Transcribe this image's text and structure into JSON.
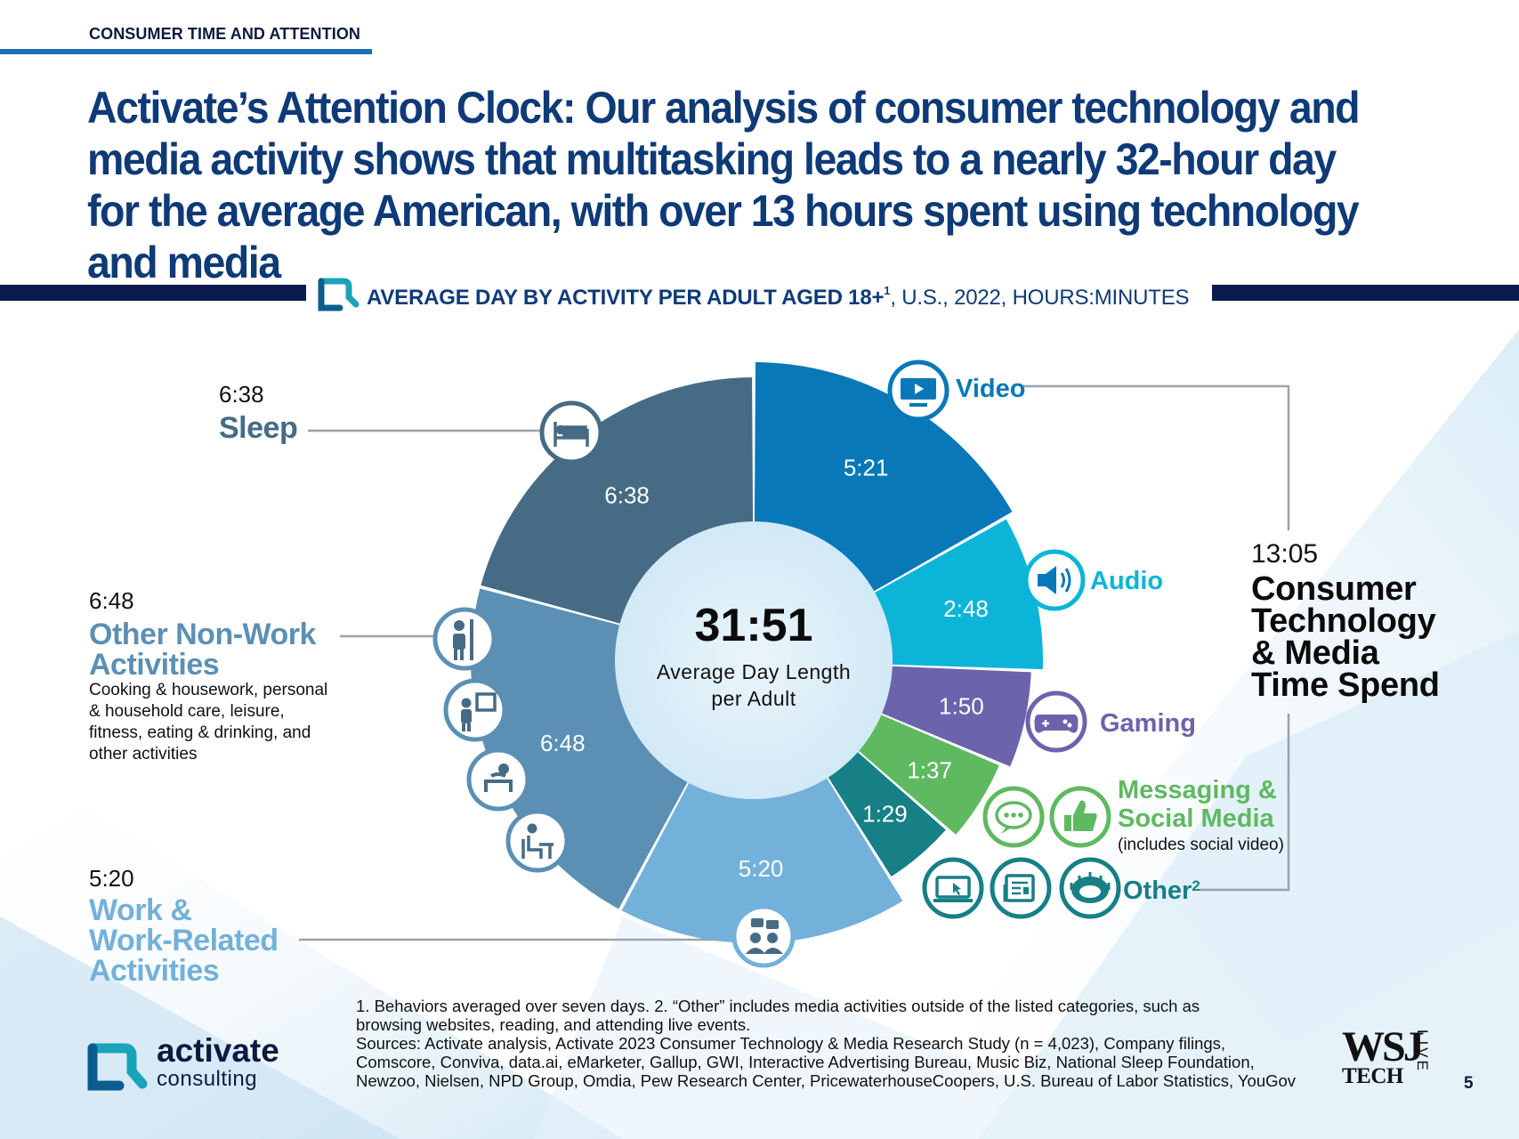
{
  "section_label": "CONSUMER TIME AND ATTENTION",
  "headline": "Activate’s Attention Clock: Our analysis of consumer technology and media activity shows that multitasking leads to a nearly 32-hour day for the average American, with over 13 hours spent using technology and media",
  "subheader": {
    "bold": "AVERAGE DAY BY ACTIVITY PER ADULT AGED 18+",
    "sup": "1",
    "rest": ", U.S., 2022, HOURS:MINUTES"
  },
  "left_labels": {
    "sleep": {
      "value": "6:38",
      "title": "Sleep"
    },
    "nonwork": {
      "value": "6:48",
      "title_line1": "Other Non-Work",
      "title_line2": "Activities",
      "desc": [
        "Cooking & housework, personal",
        "& household care, leisure,",
        "fitness, eating & drinking, and",
        "other activities"
      ]
    },
    "work": {
      "value": "5:20",
      "title_line1": "Work &",
      "title_line2": "Work-Related",
      "title_line3": "Activities"
    }
  },
  "right_summary": {
    "value": "13:05",
    "lines": [
      "Consumer",
      "Technology",
      "& Media",
      "Time Spend"
    ]
  },
  "icon_labels": {
    "video": "Video",
    "audio": "Audio",
    "gaming": "Gaming",
    "messaging_line1": "Messaging &",
    "messaging_line2": "Social Media",
    "messaging_note": "(includes social video)",
    "other": "Other",
    "other_sup": "2"
  },
  "center": {
    "value": "31:51",
    "line1": "Average Day Length",
    "line2": "per Adult"
  },
  "footnotes": [
    "1. Behaviors averaged over seven days.  2. “Other” includes media activities outside of the listed categories, such as",
    "browsing websites, reading, and attending live events.",
    "Sources: Activate analysis, Activate 2023 Consumer Technology & Media Research Study (n = 4,023), Company filings,",
    "Comscore, Conviva, data.ai, eMarketer, Gallup, GWI, Interactive Advertising Bureau, Music Biz, National Sleep Foundation,",
    "Newzoo, Nielsen, NPD Group, Omdia, Pew Research Center, PricewaterhouseCoopers, U.S. Bureau of Labor Statistics, YouGov"
  ],
  "logo": {
    "name": "activate",
    "sub": "consulting"
  },
  "wsj": {
    "big": "WSJ",
    "tech": "TECH",
    "live": "LIVE"
  },
  "page_number": "5",
  "chart_data": {
    "type": "pie",
    "title": "AVERAGE DAY BY ACTIVITY PER ADULT AGED 18+, U.S., 2022, HOURS:MINUTES",
    "center_total": "31:51",
    "series": [
      {
        "name": "Video",
        "label": "5:21",
        "minutes": 321,
        "color": "#0878b9",
        "group": "tech"
      },
      {
        "name": "Audio",
        "label": "2:48",
        "minutes": 168,
        "color": "#0cb5d8",
        "group": "tech"
      },
      {
        "name": "Gaming",
        "label": "1:50",
        "minutes": 110,
        "color": "#6b63ab",
        "group": "tech"
      },
      {
        "name": "Messaging & Social Media",
        "label": "1:37",
        "minutes": 97,
        "color": "#5fb961",
        "group": "tech"
      },
      {
        "name": "Other",
        "label": "1:29",
        "minutes": 89,
        "color": "#177f86",
        "group": "tech"
      },
      {
        "name": "Work & Work-Related Activities",
        "label": "5:20",
        "minutes": 320,
        "color": "#73b1da",
        "group": "nontech"
      },
      {
        "name": "Other Non-Work Activities",
        "label": "6:48",
        "minutes": 408,
        "color": "#5b90b4",
        "group": "nontech"
      },
      {
        "name": "Sleep",
        "label": "6:38",
        "minutes": 398,
        "color": "#466b85",
        "group": "nontech"
      }
    ],
    "tech_total": "13:05"
  }
}
